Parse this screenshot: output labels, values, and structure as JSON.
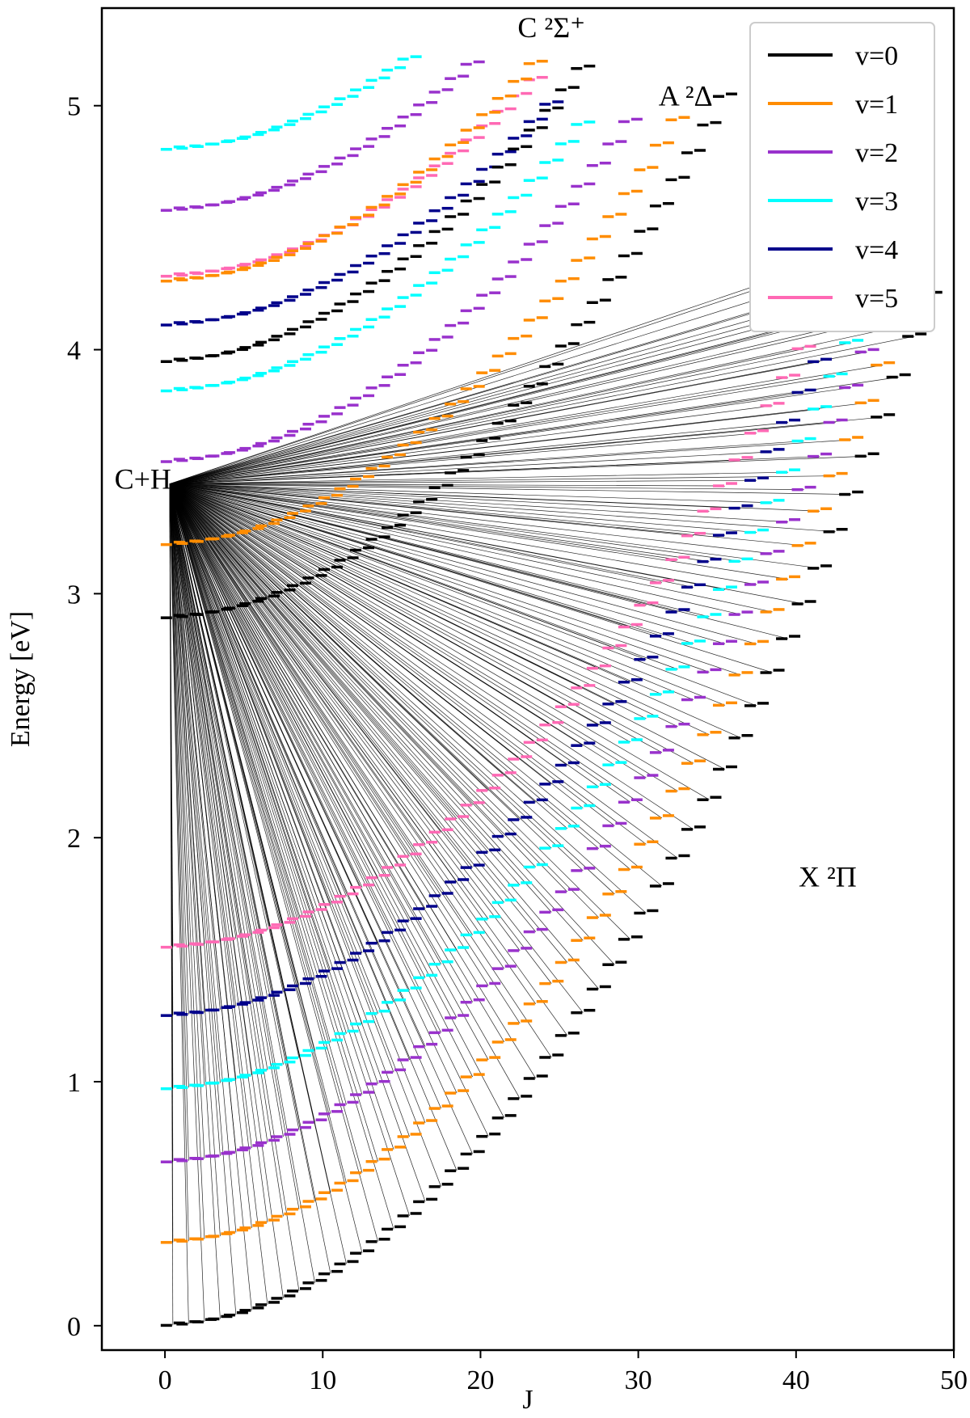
{
  "chart_data": {
    "type": "scatter",
    "title": "",
    "xlabel": "J",
    "ylabel": "Energy [eV]",
    "xlim": [
      -4,
      50
    ],
    "ylim": [
      -0.1,
      5.4
    ],
    "xticks": [
      0,
      10,
      20,
      30,
      40,
      50
    ],
    "xtick_labels": [
      "0",
      "10",
      "20",
      "30",
      "40",
      "50"
    ],
    "yticks": [
      0,
      1,
      2,
      3,
      4,
      5
    ],
    "ytick_labels": [
      "0",
      "1",
      "2",
      "3",
      "4",
      "5"
    ],
    "grid": false,
    "legend_position": "top-right",
    "dissociation_label": "C+H",
    "dissociation_energy": 3.45,
    "series": [
      {
        "name": "v=0",
        "color": "#000000"
      },
      {
        "name": "v=1",
        "color": "#ff8c00"
      },
      {
        "name": "v=2",
        "color": "#9932cc"
      },
      {
        "name": "v=3",
        "color": "#00ffff"
      },
      {
        "name": "v=4",
        "color": "#00008b"
      },
      {
        "name": "v=5",
        "color": "#ff69b4"
      }
    ],
    "states": [
      {
        "label": "X ²Π",
        "label_position": [
          42,
          1.8
        ],
        "fan_to_dissociation": true,
        "levels": [
          {
            "v": 0,
            "E0": 0.0,
            "B": 0.00176,
            "Jmax": 48.5
          },
          {
            "v": 1,
            "E0": 0.34,
            "B": 0.0017,
            "Jmax": 48.0
          },
          {
            "v": 2,
            "E0": 0.67,
            "B": 0.00164,
            "Jmax": 47.0
          },
          {
            "v": 3,
            "E0": 0.97,
            "B": 0.00158,
            "Jmax": 46.5
          },
          {
            "v": 4,
            "E0": 1.27,
            "B": 0.00152,
            "Jmax": 45.0
          },
          {
            "v": 5,
            "E0": 1.55,
            "B": 0.00146,
            "Jmax": 43.5
          }
        ]
      },
      {
        "label": "A ²Δ",
        "label_position": [
          33,
          5.0
        ],
        "fan_to_dissociation": false,
        "levels": [
          {
            "v": 0,
            "E0": 2.9,
            "B": 0.00165,
            "Jmax": 35.5
          },
          {
            "v": 1,
            "E0": 3.2,
            "B": 0.0016,
            "Jmax": 33.0
          },
          {
            "v": 2,
            "E0": 3.54,
            "B": 0.00155,
            "Jmax": 30.0
          },
          {
            "v": 3,
            "E0": 3.83,
            "B": 0.0015,
            "Jmax": 27.0
          },
          {
            "v": 4,
            "E0": 4.1,
            "B": 0.00145,
            "Jmax": 25.0
          },
          {
            "v": 5,
            "E0": 4.3,
            "B": 0.0014,
            "Jmax": 23.5
          }
        ]
      },
      {
        "label": "C ²Σ⁺",
        "label_position": [
          24.5,
          5.28
        ],
        "fan_to_dissociation": false,
        "levels": [
          {
            "v": 0,
            "E0": 3.95,
            "B": 0.00165,
            "Jmax": 27.0
          },
          {
            "v": 1,
            "E0": 4.28,
            "B": 0.00155,
            "Jmax": 24.0
          },
          {
            "v": 2,
            "E0": 4.57,
            "B": 0.0015,
            "Jmax": 20.0
          },
          {
            "v": 3,
            "E0": 4.82,
            "B": 0.00145,
            "Jmax": 16.0
          }
        ]
      }
    ]
  }
}
